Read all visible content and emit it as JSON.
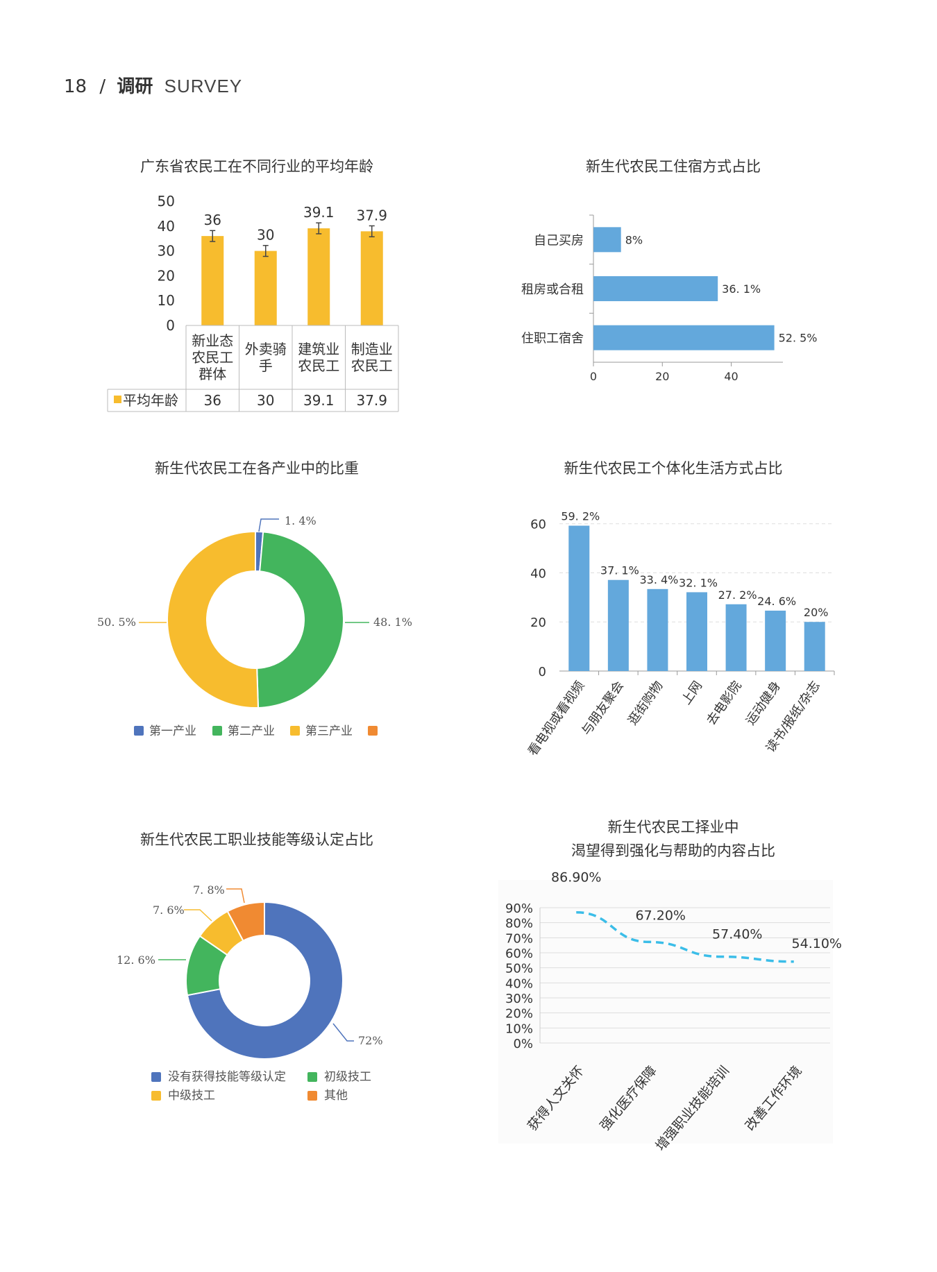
{
  "header": {
    "page_number": "18",
    "separator": "/",
    "section_cn": "调研",
    "section_en": "SURVEY"
  },
  "colors": {
    "yellow": "#F7BC2E",
    "blue": "#63A8DC",
    "green": "#43B55D",
    "dark_blue": "#4F74BC",
    "orange": "#F08A32",
    "dashed_line": "#3BBDE8"
  },
  "charts": {
    "age": {
      "title": "广东省农民工在不同行业的平均年龄",
      "legend_label": "平均年龄",
      "category_lines": [
        [
          "新业态",
          "农民工",
          "群体"
        ],
        [
          "外卖骑",
          "手"
        ],
        [
          "建筑业",
          "农民工"
        ],
        [
          "制造业",
          "农民工"
        ]
      ]
    },
    "housing": {
      "title": "新生代农民工住宿方式占比"
    },
    "industry": {
      "title": "新生代农民工在各产业中的比重",
      "legend": [
        "第一产业",
        "第二产业",
        "第三产业"
      ]
    },
    "lifestyle": {
      "title": "新生代农民工个体化生活方式占比"
    },
    "skill": {
      "title": "新生代农民工职业技能等级认定占比",
      "legend": [
        "没有获得技能等级认定",
        "初级技工",
        "中级技工",
        "其他"
      ]
    },
    "desire": {
      "title_line1": "新生代农民工择业中",
      "title_line2": "渴望得到强化与帮助的内容占比"
    }
  },
  "chart_data": [
    {
      "id": "age",
      "type": "bar",
      "categories": [
        "新业态农民工群体",
        "外卖骑手",
        "建筑业农民工",
        "制造业农民工"
      ],
      "series": [
        {
          "name": "平均年龄",
          "values": [
            36,
            30,
            39.1,
            37.9
          ]
        }
      ],
      "data_labels": [
        "36",
        "30",
        "39.1",
        "37.9"
      ],
      "table_values": [
        "36",
        "30",
        "39.1",
        "37.9"
      ],
      "ylim": [
        0,
        50
      ],
      "yticks": [
        "0",
        "10",
        "20",
        "30",
        "40",
        "50"
      ],
      "error_bars": true
    },
    {
      "id": "housing",
      "type": "bar",
      "orientation": "horizontal",
      "categories": [
        "自己买房",
        "租房或合租",
        "住职工宿舍"
      ],
      "values": [
        8,
        36.1,
        52.5
      ],
      "data_labels": [
        "8%",
        "36. 1%",
        "52. 5%"
      ],
      "xlim": [
        0,
        55
      ],
      "xticks": [
        "0",
        "20",
        "40"
      ]
    },
    {
      "id": "industry",
      "type": "pie",
      "donut": true,
      "labels": [
        "第一产业",
        "第二产业",
        "第三产业"
      ],
      "values": [
        1.4,
        48.1,
        50.5
      ],
      "data_labels": [
        "1. 4%",
        "48. 1%",
        "50. 5%"
      ]
    },
    {
      "id": "lifestyle",
      "type": "bar",
      "categories": [
        "看电视或看视频",
        "与朋友聚会",
        "逛街购物",
        "上网",
        "去电影院",
        "运动健身",
        "读书/报纸/杂志"
      ],
      "values": [
        59.2,
        37.1,
        33.4,
        32.1,
        27.2,
        24.6,
        20
      ],
      "data_labels": [
        "59. 2%",
        "37. 1%",
        "33. 4%",
        "32. 1%",
        "27. 2%",
        "24. 6%",
        "20%"
      ],
      "ylim": [
        0,
        65
      ],
      "yticks": [
        "0",
        "20",
        "40",
        "60"
      ]
    },
    {
      "id": "skill",
      "type": "pie",
      "donut": true,
      "labels": [
        "没有获得技能等级认定",
        "初级技工",
        "中级技工",
        "其他"
      ],
      "values": [
        72,
        12.6,
        7.6,
        7.8
      ],
      "data_labels": [
        "72%",
        "12. 6%",
        "7. 6%",
        "7. 8%"
      ]
    },
    {
      "id": "desire",
      "type": "line",
      "line_style": "dashed",
      "categories": [
        "获得人文关怀",
        "强化医疗保障",
        "增强职业技能培训",
        "改善工作环境"
      ],
      "values": [
        86.9,
        67.2,
        57.4,
        54.1
      ],
      "data_labels": [
        "86.90%",
        "67.20%",
        "57.40%",
        "54.10%"
      ],
      "ylim": [
        0,
        90
      ],
      "yticks": [
        "0%",
        "10%",
        "20%",
        "30%",
        "40%",
        "50%",
        "60%",
        "70%",
        "80%",
        "90%"
      ]
    }
  ]
}
